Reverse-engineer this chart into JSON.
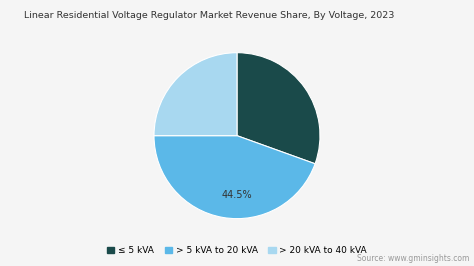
{
  "title": "Linear Residential Voltage Regulator Market Revenue Share, By Voltage, 2023",
  "labels": [
    "≤ 5 kVA",
    "> 5 kVA to 20 kVA",
    "> 20 kVA to 40 kVA"
  ],
  "sizes": [
    30.5,
    44.5,
    25.0
  ],
  "colors": [
    "#1a4a4a",
    "#5bb8e8",
    "#a8d8f0"
  ],
  "explode": [
    0.0,
    0.0,
    0.0
  ],
  "startangle": 90,
  "annotation_text": "44.5%",
  "source_text": "Source: www.gminsights.com",
  "background_color": "#f5f5f5",
  "title_fontsize": 6.8,
  "legend_fontsize": 6.5,
  "annotation_fontsize": 7.0,
  "source_fontsize": 5.5
}
